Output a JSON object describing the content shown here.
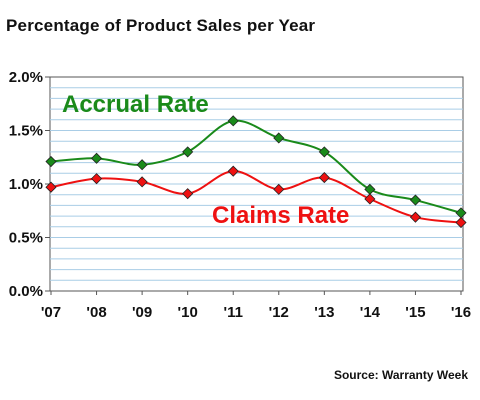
{
  "title": "Percentage of Product Sales per Year",
  "source": "Source: Warranty Week",
  "chart_data": {
    "type": "line",
    "title": "Percentage of Product Sales per Year",
    "xlabel": "",
    "ylabel": "",
    "categories": [
      "'07",
      "'08",
      "'09",
      "'10",
      "'11",
      "'12",
      "'13",
      "'14",
      "'15",
      "'16"
    ],
    "ylim": [
      0,
      2.0
    ],
    "y_ticks": [
      0,
      0.5,
      1.0,
      1.5,
      2.0
    ],
    "y_tick_labels": [
      "0.0%",
      "0.5%",
      "1.0%",
      "1.5%",
      "2.0%"
    ],
    "grid": true,
    "series": [
      {
        "name": "Accrual Rate",
        "color": "#1a8a1a",
        "values": [
          1.21,
          1.24,
          1.18,
          1.3,
          1.59,
          1.43,
          1.3,
          0.95,
          0.85,
          0.73
        ]
      },
      {
        "name": "Claims Rate",
        "color": "#ee1111",
        "values": [
          0.97,
          1.05,
          1.02,
          0.91,
          1.12,
          0.95,
          1.06,
          0.86,
          0.69,
          0.64
        ]
      }
    ]
  }
}
